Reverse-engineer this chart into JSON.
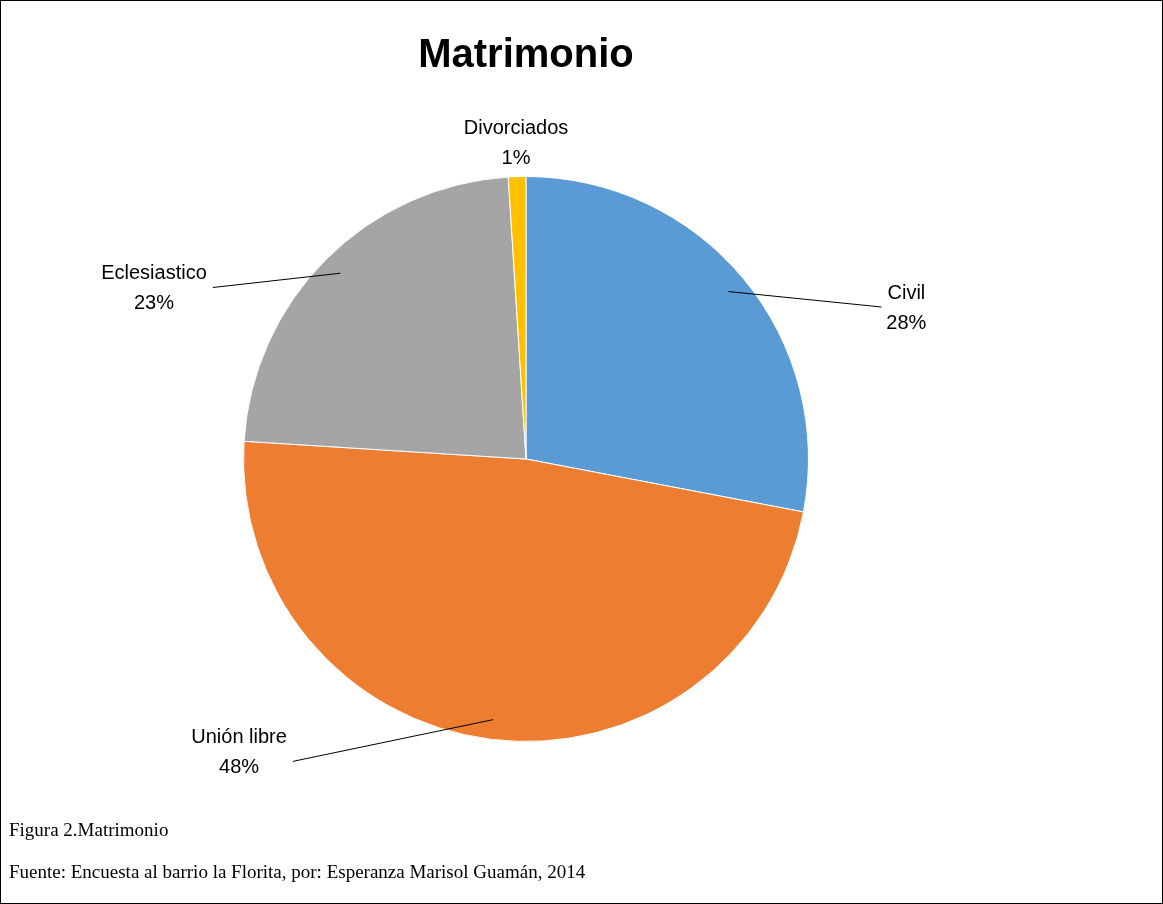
{
  "chart_data": {
    "type": "pie",
    "title": "Matrimonio",
    "categories": [
      "Civil",
      "Unión libre",
      "Eclesiastico",
      "Divorciados"
    ],
    "values": [
      28,
      48,
      23,
      1
    ],
    "colors": [
      "#5b9bd5",
      "#ed7d31",
      "#a5a5a5",
      "#ffc000"
    ],
    "value_labels": [
      "28%",
      "48%",
      "23%",
      "1%"
    ],
    "legend": false,
    "annotations": [
      "Figura 2.Matrimonio",
      "Fuente: Encuesta al barrio la Florita, por: Esperanza Marisol Guamán, 2014"
    ]
  }
}
